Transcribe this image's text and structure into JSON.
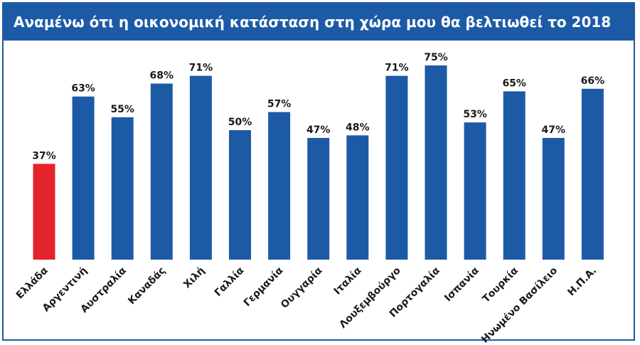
{
  "chart_data": {
    "type": "bar",
    "title": "Αναμένω ότι η οικονομική κατάσταση στη χώρα μου θα βελτιωθεί το 2018",
    "categories": [
      "Ελλάδα",
      "Αργεντινή",
      "Αυστραλία",
      "Καναδάς",
      "Χιλή",
      "Γαλλία",
      "Γερμανία",
      "Ουγγαρία",
      "Ιταλία",
      "Λουξεμβούργο",
      "Πορτογαλία",
      "Ισπανία",
      "Τουρκία",
      "Ηνωμένο Βασίλειο",
      "Η.Π.Α."
    ],
    "values": [
      37,
      63,
      55,
      68,
      71,
      50,
      57,
      47,
      48,
      71,
      75,
      53,
      65,
      47,
      66
    ],
    "value_labels": [
      "37%",
      "63%",
      "55%",
      "68%",
      "71%",
      "50%",
      "57%",
      "47%",
      "48%",
      "71%",
      "75%",
      "53%",
      "65%",
      "47%",
      "66%"
    ],
    "ylim": [
      0,
      100
    ],
    "grid": false,
    "colors": {
      "highlight": "#e3242b",
      "bar": "#1d5aa6",
      "header": "#1d5aa6"
    },
    "highlight_index": 0
  }
}
